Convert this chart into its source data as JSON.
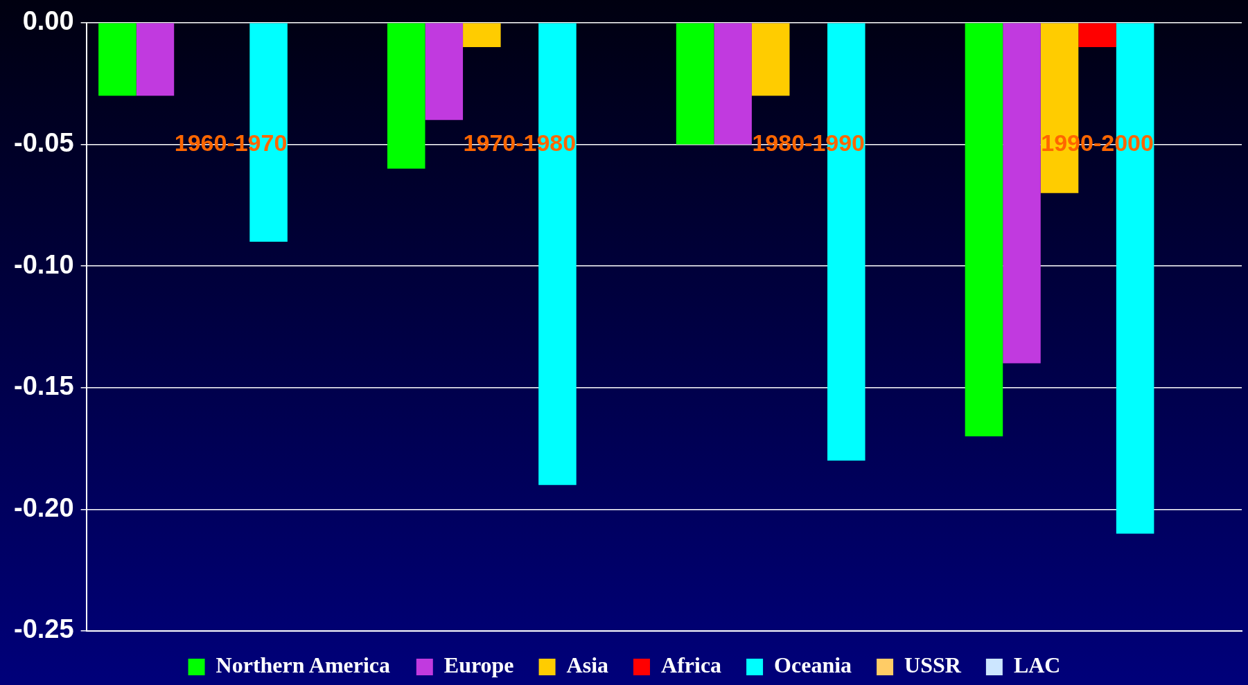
{
  "chart_data": {
    "type": "bar",
    "categories": [
      "1960-1970",
      "1970-1980",
      "1980-1990",
      "1990-2000"
    ],
    "series": [
      {
        "name": "Northern America",
        "color": "#00ff00",
        "values": [
          -0.03,
          -0.06,
          -0.05,
          -0.17
        ]
      },
      {
        "name": "Europe",
        "color": "#c13adf",
        "values": [
          -0.03,
          -0.04,
          -0.05,
          -0.14
        ]
      },
      {
        "name": "Asia",
        "color": "#ffcc00",
        "values": [
          null,
          -0.01,
          -0.03,
          -0.07
        ]
      },
      {
        "name": "Africa",
        "color": "#ff0000",
        "values": [
          null,
          null,
          null,
          -0.01
        ]
      },
      {
        "name": "Oceania",
        "color": "#00ffff",
        "values": [
          -0.09,
          -0.19,
          -0.18,
          -0.21
        ]
      },
      {
        "name": "USSR",
        "color": "#ffcc66",
        "values": [
          null,
          null,
          null,
          null
        ]
      },
      {
        "name": "LAC",
        "color": "#cce6ff",
        "values": [
          null,
          null,
          null,
          null
        ]
      }
    ],
    "ylim": [
      -0.25,
      0
    ],
    "yticks": [
      {
        "value": 0,
        "label": "0.00"
      },
      {
        "value": -0.05,
        "label": "-0.05"
      },
      {
        "value": -0.1,
        "label": "-0.10"
      },
      {
        "value": -0.15,
        "label": "-0.15"
      },
      {
        "value": -0.2,
        "label": "-0.20"
      },
      {
        "value": -0.25,
        "label": "-0.25"
      }
    ],
    "grid": "y",
    "legend": "bottom"
  }
}
